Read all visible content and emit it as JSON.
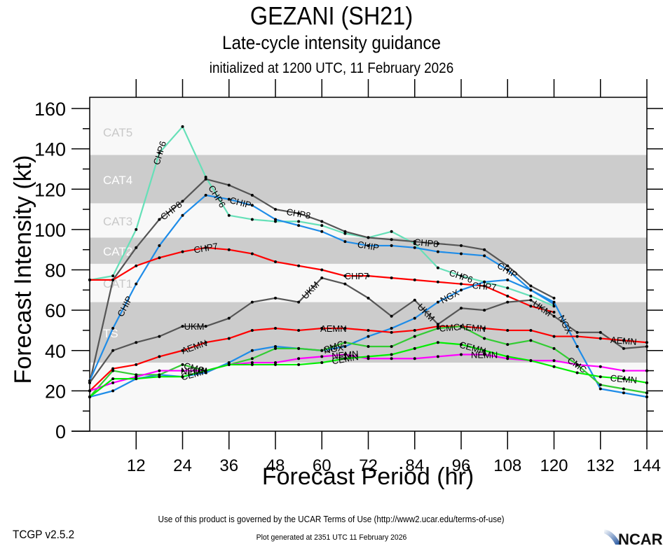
{
  "titles": {
    "main": "GEZANI (SH21)",
    "subtitle": "Late-cycle intensity guidance",
    "init": "initialized at 1200 UTC, 11 February 2026"
  },
  "footer": {
    "terms": "Use of this product is governed by the UCAR Terms of Use (http://www2.ucar.edu/terms-of-use)",
    "version": "TCGP v2.5.2",
    "generated": "Plot generated at 2351 UTC   11 February 2026",
    "logo_text": "NCAR"
  },
  "chart_data": {
    "type": "line",
    "title": "GEZANI (SH21)",
    "xlabel": "Forecast Period (hr)",
    "ylabel": "Forecast Intensity (kt)",
    "xlim": [
      0,
      144
    ],
    "ylim": [
      0,
      160
    ],
    "xticks": [
      12,
      24,
      36,
      48,
      60,
      72,
      84,
      96,
      108,
      120,
      132,
      144
    ],
    "yticks": [
      0,
      20,
      40,
      60,
      80,
      100,
      120,
      140,
      160
    ],
    "bands": [
      {
        "label": "TS",
        "from": 34,
        "to": 64,
        "shade": "dark"
      },
      {
        "label": "CAT1",
        "from": 64,
        "to": 83,
        "shade": "light"
      },
      {
        "label": "CAT2",
        "from": 83,
        "to": 96,
        "shade": "dark"
      },
      {
        "label": "CAT3",
        "from": 96,
        "to": 113,
        "shade": "light"
      },
      {
        "label": "CAT4",
        "from": 113,
        "to": 137,
        "shade": "dark"
      },
      {
        "label": "CAT5",
        "from": 137,
        "to": 160,
        "shade": "light"
      }
    ],
    "band_colors": {
      "dark": "#cccccc",
      "light": "#f8f8f8",
      "label_dark": "#ffffff",
      "label_light": "#c8c8c8"
    },
    "x": [
      0,
      6,
      12,
      18,
      24,
      30,
      36,
      42,
      48,
      54,
      60,
      66,
      72,
      78,
      84,
      90,
      96,
      102,
      108,
      114,
      120,
      126,
      132,
      138,
      144
    ],
    "series": [
      {
        "name": "CHP6",
        "color": "#66e0b8",
        "label_at": [
          18,
          33,
          96
        ],
        "values": [
          75,
          77,
          100,
          138,
          151,
          126,
          107,
          105,
          104,
          104,
          102,
          98,
          96,
          99,
          93,
          81,
          77,
          74,
          71,
          67,
          62,
          null,
          null,
          null,
          null
        ]
      },
      {
        "name": "CHP8",
        "color": "#555555",
        "label_at": [
          21,
          54,
          87
        ],
        "values": [
          24,
          75,
          91,
          105,
          114,
          125,
          122,
          117,
          110,
          108,
          104,
          99,
          96,
          95,
          94,
          93,
          92,
          90,
          82,
          72,
          66,
          null,
          null,
          null,
          null
        ]
      },
      {
        "name": "CHIP",
        "color": "#1e8ce8",
        "label_at": [
          9,
          39,
          72,
          108
        ],
        "values": [
          25,
          51,
          73,
          92,
          107,
          117,
          115,
          112,
          105,
          102,
          99,
          94,
          92,
          92,
          91,
          89,
          88,
          87,
          80,
          70,
          63,
          null,
          null,
          null,
          null
        ]
      },
      {
        "name": "CHP7",
        "color": "#ff0000",
        "label_at": [
          30,
          69,
          102
        ],
        "values": [
          75,
          75,
          82,
          86,
          89,
          91,
          90,
          88,
          84,
          82,
          80,
          77,
          77,
          76,
          75,
          74,
          73,
          72,
          67,
          62,
          59,
          null,
          null,
          null,
          null
        ]
      },
      {
        "name": "UKM",
        "color": "#555555",
        "label_at": [
          27,
          57,
          87,
          117
        ],
        "values": [
          24,
          40,
          44,
          47,
          52,
          52,
          56,
          64,
          66,
          64,
          76,
          73,
          66,
          57,
          65,
          53,
          61,
          60,
          64,
          65,
          57,
          49,
          49,
          41,
          42
        ]
      },
      {
        "name": "NGX",
        "color": "#1e8ce8",
        "label_at": [
          63,
          93,
          123
        ],
        "values": [
          17,
          20,
          26,
          28,
          27,
          29,
          34,
          40,
          42,
          41,
          40,
          42,
          47,
          51,
          56,
          64,
          70,
          74,
          75,
          70,
          64,
          42,
          21,
          19,
          17
        ]
      },
      {
        "name": "AEMN",
        "color": "#ff0000",
        "label_at": [
          27,
          63,
          99,
          138
        ],
        "values": [
          20,
          31,
          33,
          37,
          40,
          44,
          46,
          50,
          51,
          50,
          51,
          51,
          50,
          49,
          50,
          52,
          52,
          51,
          50,
          50,
          47,
          47,
          46,
          45,
          44
        ]
      },
      {
        "name": "CMC",
        "color": "#33cc33",
        "label_at": [
          27,
          63,
          93,
          126
        ],
        "values": [
          17,
          30,
          28,
          28,
          33,
          30,
          33,
          36,
          41,
          41,
          40,
          44,
          42,
          42,
          47,
          51,
          52,
          46,
          43,
          45,
          41,
          33,
          23,
          21,
          19
        ]
      },
      {
        "name": "NEMN",
        "color": "#ff00ff",
        "label_at": [
          27,
          66,
          102
        ],
        "values": [
          20,
          24,
          27,
          30,
          30,
          30,
          33,
          34,
          34,
          36,
          37,
          38,
          36,
          36,
          36,
          37,
          38,
          38,
          36,
          35,
          35,
          33,
          32,
          30,
          30
        ]
      },
      {
        "name": "CEMN",
        "color": "#00ee00",
        "label_at": [
          27,
          66,
          99,
          138
        ],
        "values": [
          17,
          26,
          26,
          27,
          27,
          30,
          33,
          33,
          33,
          33,
          34,
          36,
          37,
          38,
          41,
          44,
          43,
          40,
          37,
          35,
          32,
          29,
          27,
          26,
          24
        ]
      }
    ]
  }
}
